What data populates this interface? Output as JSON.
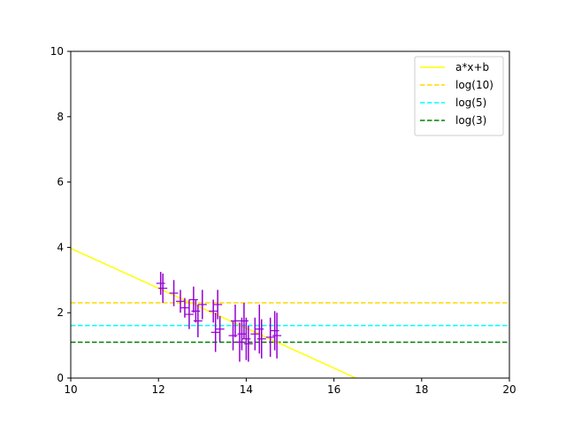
{
  "chart_data": {
    "type": "line",
    "title": "",
    "xlabel": "",
    "ylabel": "",
    "xlim": [
      10,
      20
    ],
    "ylim": [
      0,
      10
    ],
    "x_ticks": [
      10,
      12,
      14,
      16,
      18,
      20
    ],
    "y_ticks": [
      0,
      2,
      4,
      6,
      8,
      10
    ],
    "grid": false,
    "legend_position": "top-right",
    "series": [
      {
        "name": "a*x+b",
        "kind": "fit-line",
        "color": "#ffff00",
        "dash": "solid",
        "x": [
          10,
          16.5
        ],
        "y": [
          3.97,
          0.0
        ]
      },
      {
        "name": "log(10)",
        "kind": "hline",
        "color": "#ffd700",
        "dash": "dashed",
        "value": 2.303
      },
      {
        "name": "log(5)",
        "kind": "hline",
        "color": "#00ffff",
        "dash": "dashed",
        "value": 1.609
      },
      {
        "name": "log(3)",
        "kind": "hline",
        "color": "#008000",
        "dash": "dashed",
        "value": 1.099
      }
    ],
    "errorbars": {
      "color": "#9400d3",
      "points": [
        {
          "x": 12.05,
          "y": 2.9,
          "err": 0.35
        },
        {
          "x": 12.1,
          "y": 2.75,
          "err": 0.45
        },
        {
          "x": 12.35,
          "y": 2.6,
          "err": 0.4
        },
        {
          "x": 12.5,
          "y": 2.35,
          "err": 0.35
        },
        {
          "x": 12.6,
          "y": 2.15,
          "err": 0.3
        },
        {
          "x": 12.7,
          "y": 1.95,
          "err": 0.45
        },
        {
          "x": 12.8,
          "y": 2.4,
          "err": 0.4
        },
        {
          "x": 12.85,
          "y": 2.05,
          "err": 0.35
        },
        {
          "x": 12.9,
          "y": 1.75,
          "err": 0.5
        },
        {
          "x": 13.0,
          "y": 2.25,
          "err": 0.45
        },
        {
          "x": 13.25,
          "y": 2.05,
          "err": 0.35
        },
        {
          "x": 13.3,
          "y": 1.4,
          "err": 0.6
        },
        {
          "x": 13.35,
          "y": 2.25,
          "err": 0.45
        },
        {
          "x": 13.4,
          "y": 1.5,
          "err": 0.4
        },
        {
          "x": 13.7,
          "y": 1.3,
          "err": 0.45
        },
        {
          "x": 13.75,
          "y": 1.75,
          "err": 0.5
        },
        {
          "x": 13.85,
          "y": 1.1,
          "err": 0.6
        },
        {
          "x": 13.9,
          "y": 1.35,
          "err": 0.5
        },
        {
          "x": 13.95,
          "y": 1.75,
          "err": 0.55
        },
        {
          "x": 14.0,
          "y": 1.2,
          "err": 0.65
        },
        {
          "x": 14.05,
          "y": 1.05,
          "err": 0.55
        },
        {
          "x": 14.2,
          "y": 1.35,
          "err": 0.5
        },
        {
          "x": 14.3,
          "y": 1.5,
          "err": 0.75
        },
        {
          "x": 14.35,
          "y": 1.2,
          "err": 0.6
        },
        {
          "x": 14.55,
          "y": 1.25,
          "err": 0.6
        },
        {
          "x": 14.65,
          "y": 1.45,
          "err": 0.6
        },
        {
          "x": 14.7,
          "y": 1.3,
          "err": 0.7
        }
      ]
    }
  }
}
